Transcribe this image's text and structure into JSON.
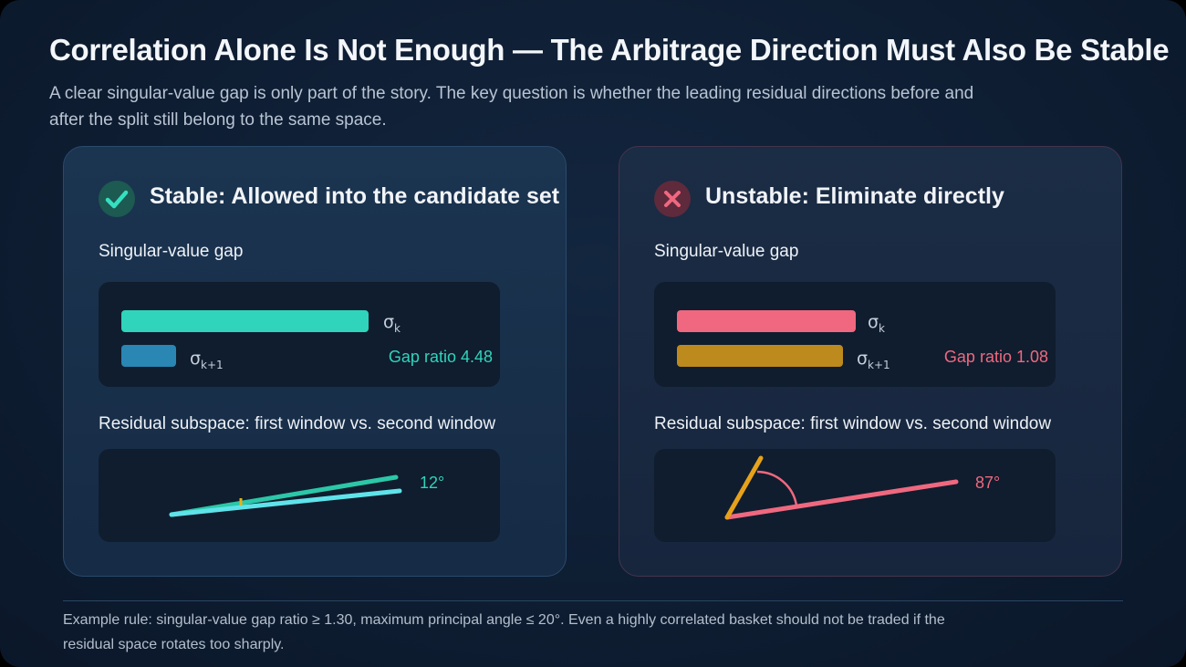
{
  "header": {
    "title": "Correlation Alone Is Not Enough — The Arbitrage Direction Must Also Be Stable",
    "subtitle": "A clear singular-value gap is only part of the story. The key question is whether the leading residual directions before and after the split still belong to the same space."
  },
  "panels": {
    "stable": {
      "title": "Stable: Allowed into the candidate set",
      "status_icon": "check-icon",
      "gap_label": "Singular-value gap",
      "sigma_k": "σ",
      "sigma_k_sub": "k",
      "sigma_k1": "σ",
      "sigma_k1_sub": "k+1",
      "gap_ratio_text": "Gap ratio 4.48",
      "bar_sigma_k_fraction": 1.0,
      "bar_sigma_k1_fraction": 0.22,
      "bar_sigma_k_color": "#2fd4bb",
      "bar_sigma_k1_color": "#2a86b3",
      "subspace_label": "Residual subspace: first window vs. second window",
      "angle_text": "12°",
      "angle_degrees": 12,
      "accent_color": "#2fd4bb"
    },
    "unstable": {
      "title": "Unstable: Eliminate directly",
      "status_icon": "x-icon",
      "gap_label": "Singular-value gap",
      "sigma_k": "σ",
      "sigma_k_sub": "k",
      "sigma_k1": "σ",
      "sigma_k1_sub": "k+1",
      "gap_ratio_text": "Gap ratio 1.08",
      "bar_sigma_k_fraction": 1.0,
      "bar_sigma_k1_fraction": 0.93,
      "bar_sigma_k_color": "#f0687f",
      "bar_sigma_k1_color": "#bd8a1d",
      "subspace_label": "Residual subspace: first window vs. second window",
      "angle_text": "87°",
      "angle_degrees": 87,
      "accent_color": "#f0687f"
    }
  },
  "footer": {
    "text": "Example rule: singular-value gap ratio ≥ 1.30, maximum principal angle ≤ 20°. Even a highly correlated basket should not be traded if the residual space rotates too sharply."
  }
}
